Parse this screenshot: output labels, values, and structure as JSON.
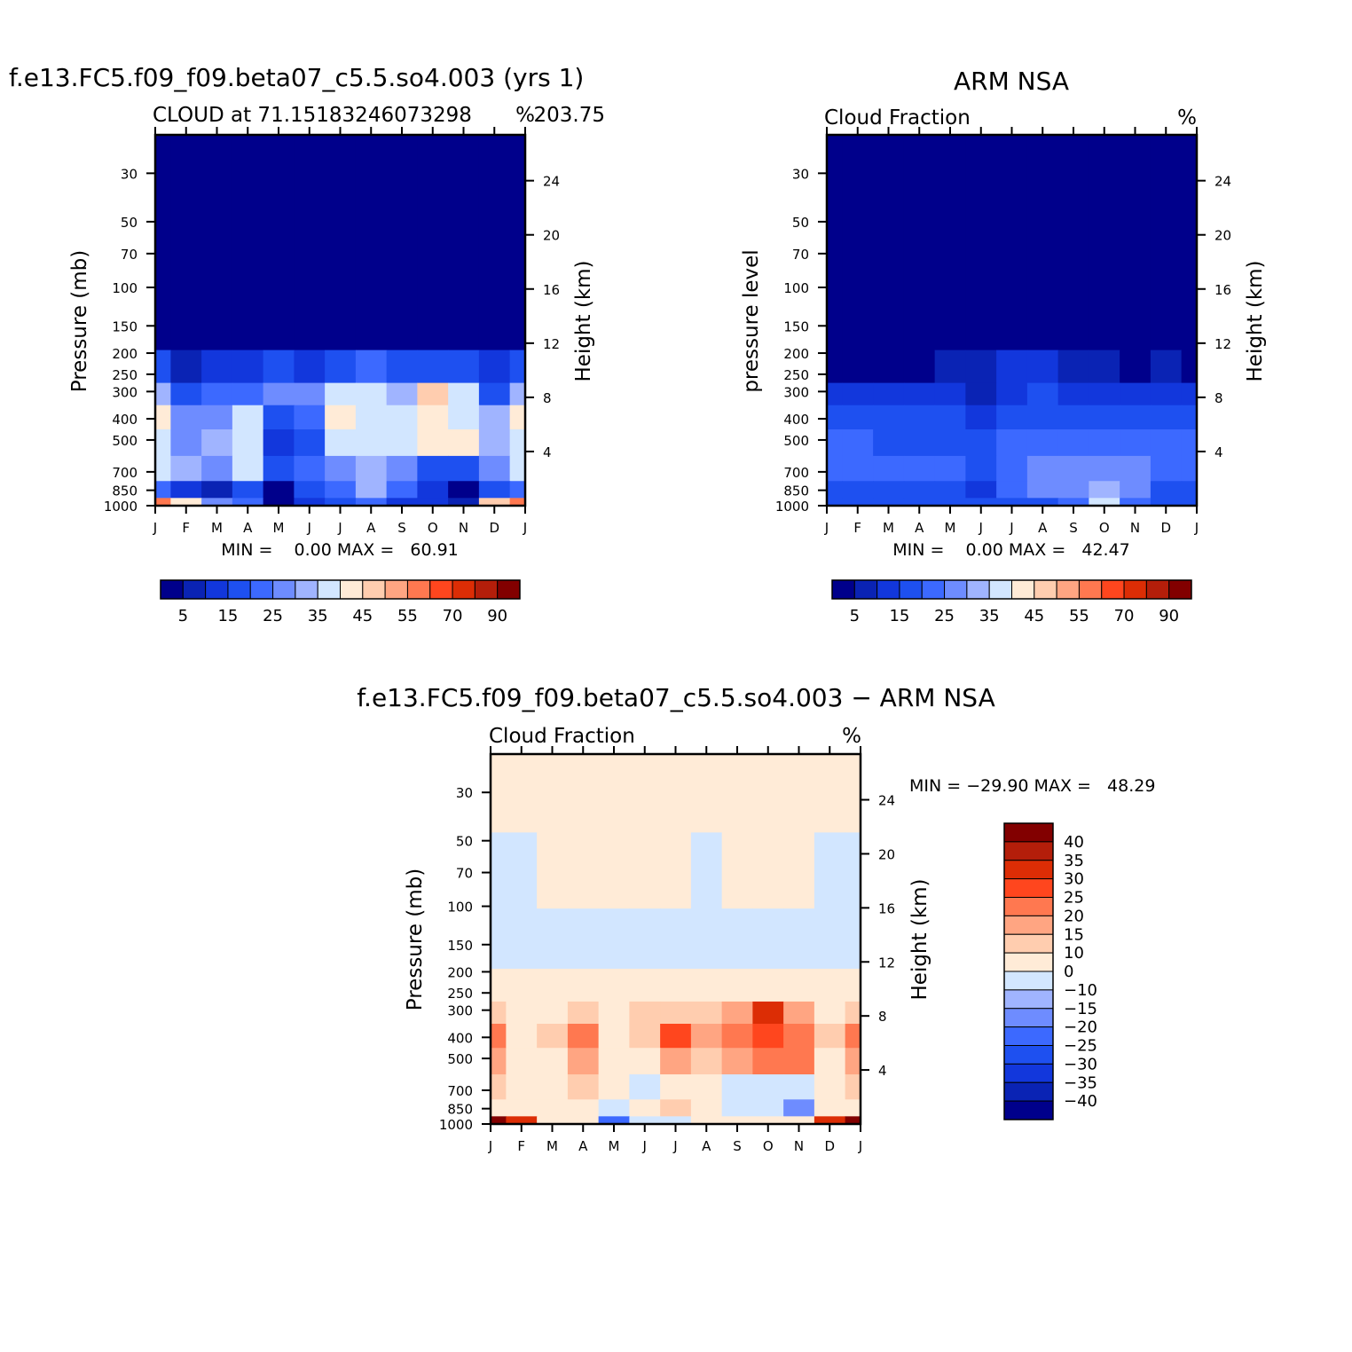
{
  "chart_data": [
    {
      "type": "heatmap",
      "panel": "model",
      "main_title": "f.e13.FC5.f09_f09.beta07_c5.5.so4.003 (yrs 1)",
      "left_subtitle": "CLOUD at 71.15183246073298",
      "right_subtitle": "203.75",
      "units": "%",
      "ylabel": "Pressure (mb)",
      "ylabel_right": "Height (km)",
      "x_ticks": [
        "J",
        "F",
        "M",
        "A",
        "M",
        "J",
        "J",
        "A",
        "S",
        "O",
        "N",
        "D",
        "J"
      ],
      "pressure_ticks": [
        30,
        50,
        70,
        100,
        150,
        200,
        250,
        300,
        400,
        500,
        700,
        850,
        1000
      ],
      "height_ticks": [
        24,
        20,
        16,
        12,
        8,
        4
      ],
      "ylim_mb": [
        20,
        1000
      ],
      "min_max_text": "MIN =    0.00 MAX =   60.91",
      "min": 0.0,
      "max": 60.91,
      "colorbar_labels": [
        "5",
        "15",
        "25",
        "35",
        "45",
        "55",
        "70",
        "90"
      ],
      "colorbar_colors": [
        "#00008b",
        "#0a23b4",
        "#1237dc",
        "#1e50f0",
        "#3c69ff",
        "#6e8cff",
        "#a0b4ff",
        "#d2e6ff",
        "#ffebd7",
        "#ffcdaf",
        "#ffa582",
        "#ff7850",
        "#ff461e",
        "#dc2d05",
        "#b41e0a",
        "#820000"
      ],
      "pressure_levels": [
        30,
        150,
        250,
        300,
        400,
        500,
        700,
        850,
        1000
      ],
      "cloud_fraction_pct": [
        [
          0,
          0,
          0,
          0,
          0,
          0,
          0,
          0,
          0,
          0,
          0,
          0,
          0
        ],
        [
          0,
          0,
          0,
          0,
          0,
          0,
          0,
          0,
          0,
          0,
          0,
          0,
          0
        ],
        [
          14,
          3,
          5,
          6,
          12,
          9,
          14,
          16,
          12,
          14,
          12,
          8,
          14
        ],
        [
          28,
          10,
          15,
          18,
          22,
          22,
          30,
          33,
          26,
          40,
          33,
          12,
          28
        ],
        [
          36,
          22,
          23,
          30,
          12,
          16,
          36,
          30,
          34,
          38,
          34,
          28,
          36
        ],
        [
          34,
          24,
          26,
          34,
          8,
          14,
          34,
          30,
          32,
          38,
          36,
          26,
          34
        ],
        [
          30,
          26,
          20,
          34,
          10,
          18,
          22,
          28,
          22,
          12,
          14,
          24,
          30
        ],
        [
          16,
          6,
          4,
          12,
          1,
          10,
          18,
          26,
          16,
          6,
          2,
          14,
          16
        ],
        [
          52,
          36,
          20,
          18,
          2,
          6,
          10,
          18,
          8,
          6,
          4,
          40,
          52
        ]
      ]
    },
    {
      "type": "heatmap",
      "panel": "observation",
      "main_title": "ARM NSA",
      "left_subtitle": "Cloud Fraction",
      "right_subtitle": "",
      "units": "%",
      "ylabel": "pressure level",
      "ylabel_right": "Height (km)",
      "x_ticks": [
        "J",
        "F",
        "M",
        "A",
        "M",
        "J",
        "J",
        "A",
        "S",
        "O",
        "N",
        "D",
        "J"
      ],
      "pressure_ticks": [
        30,
        50,
        70,
        100,
        150,
        200,
        250,
        300,
        400,
        500,
        700,
        850,
        1000
      ],
      "height_ticks": [
        24,
        20,
        16,
        12,
        8,
        4
      ],
      "ylim_mb": [
        20,
        1000
      ],
      "min_max_text": "MIN =    0.00 MAX =   42.47",
      "min": 0.0,
      "max": 42.47,
      "colorbar_labels": [
        "5",
        "15",
        "25",
        "35",
        "45",
        "55",
        "70",
        "90"
      ],
      "colorbar_colors": [
        "#00008b",
        "#0a23b4",
        "#1237dc",
        "#1e50f0",
        "#3c69ff",
        "#6e8cff",
        "#a0b4ff",
        "#d2e6ff",
        "#ffebd7",
        "#ffcdaf",
        "#ffa582",
        "#ff7850",
        "#ff461e",
        "#dc2d05",
        "#b41e0a",
        "#820000"
      ],
      "pressure_levels": [
        30,
        150,
        250,
        300,
        400,
        500,
        700,
        850,
        1000
      ],
      "cloud_fraction_pct": [
        [
          0,
          0,
          0,
          0,
          0,
          0,
          0,
          0,
          0,
          0,
          0,
          0,
          0
        ],
        [
          0,
          0,
          0,
          0,
          0,
          0,
          0,
          0,
          0,
          0,
          0,
          0,
          0
        ],
        [
          2,
          2,
          1,
          2,
          3,
          4,
          6,
          8,
          4,
          3,
          2,
          3,
          2
        ],
        [
          6,
          6,
          5,
          5,
          5,
          4,
          8,
          10,
          8,
          8,
          8,
          6,
          6
        ],
        [
          12,
          10,
          10,
          12,
          12,
          8,
          14,
          14,
          12,
          12,
          12,
          12,
          12
        ],
        [
          16,
          16,
          14,
          14,
          14,
          10,
          16,
          18,
          18,
          18,
          18,
          16,
          16
        ],
        [
          18,
          18,
          16,
          18,
          18,
          12,
          18,
          20,
          22,
          22,
          20,
          18,
          18
        ],
        [
          14,
          14,
          12,
          14,
          14,
          8,
          16,
          20,
          24,
          26,
          20,
          14,
          14
        ],
        [
          10,
          10,
          10,
          10,
          10,
          10,
          12,
          14,
          18,
          30,
          18,
          10,
          10
        ]
      ]
    },
    {
      "type": "heatmap",
      "panel": "difference",
      "main_title": "f.e13.FC5.f09_f09.beta07_c5.5.so4.003 − ARM NSA",
      "left_subtitle": "Cloud Fraction",
      "right_subtitle": "",
      "units": "%",
      "ylabel": "Pressure (mb)",
      "ylabel_right": "Height (km)",
      "x_ticks": [
        "J",
        "F",
        "M",
        "A",
        "M",
        "J",
        "J",
        "A",
        "S",
        "O",
        "N",
        "D",
        "J"
      ],
      "pressure_ticks": [
        30,
        50,
        70,
        100,
        150,
        200,
        250,
        300,
        400,
        500,
        700,
        850,
        1000
      ],
      "height_ticks": [
        24,
        20,
        16,
        12,
        8,
        4
      ],
      "ylim_mb": [
        20,
        1000
      ],
      "min_max_text": "MIN = −29.90 MAX =   48.29",
      "min": -29.9,
      "max": 48.29,
      "colorbar_labels": [
        "40",
        "35",
        "30",
        "25",
        "20",
        "15",
        "10",
        "0",
        "−10",
        "−15",
        "−20",
        "−25",
        "−30",
        "−35",
        "−40"
      ],
      "colorbar_colors": [
        "#820000",
        "#b41e0a",
        "#dc2d05",
        "#ff461e",
        "#ff7850",
        "#ffa582",
        "#ffcdaf",
        "#ffebd7",
        "#d2e6ff",
        "#a0b4ff",
        "#6e8cff",
        "#3c69ff",
        "#1e50f0",
        "#1237dc",
        "#0a23b4",
        "#00008b"
      ],
      "pressure_levels": [
        30,
        70,
        150,
        250,
        300,
        400,
        500,
        700,
        850,
        1000
      ],
      "cloud_fraction_diff_pct": [
        [
          1,
          1,
          1,
          1,
          1,
          1,
          1,
          1,
          1,
          1,
          1,
          1,
          1
        ],
        [
          -1,
          -1,
          1,
          1,
          1,
          1,
          1,
          -1,
          1,
          1,
          1,
          -1,
          -1
        ],
        [
          -1,
          -1,
          -1,
          -1,
          -1,
          -1,
          -1,
          -1,
          -1,
          -1,
          -1,
          -1,
          -1
        ],
        [
          2,
          1,
          2,
          2,
          2,
          3,
          4,
          4,
          6,
          6,
          4,
          2,
          2
        ],
        [
          14,
          6,
          8,
          12,
          8,
          10,
          14,
          12,
          18,
          30,
          18,
          6,
          14
        ],
        [
          24,
          8,
          10,
          22,
          4,
          10,
          26,
          16,
          20,
          26,
          24,
          10,
          24
        ],
        [
          18,
          6,
          8,
          16,
          2,
          6,
          18,
          12,
          16,
          20,
          20,
          8,
          18
        ],
        [
          10,
          4,
          6,
          12,
          4,
          -2,
          8,
          6,
          -6,
          -4,
          -2,
          6,
          10
        ],
        [
          2,
          4,
          2,
          4,
          -6,
          2,
          10,
          8,
          -4,
          -10,
          -20,
          2,
          2
        ],
        [
          40,
          30,
          8,
          6,
          -22,
          -4,
          -2,
          4,
          4,
          2,
          0,
          30,
          40
        ]
      ]
    }
  ]
}
